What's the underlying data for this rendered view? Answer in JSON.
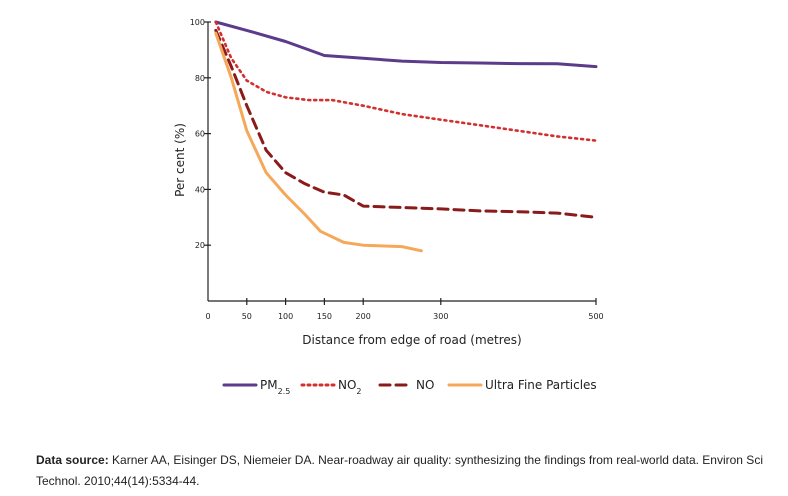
{
  "chart_data": {
    "type": "line",
    "xlabel": "Distance from edge of road (metres)",
    "ylabel": "Per cent (%)",
    "xlim": [
      0,
      500
    ],
    "ylim": [
      0,
      100
    ],
    "x_ticks": [
      0,
      50,
      100,
      150,
      200,
      300,
      500
    ],
    "y_ticks": [
      20,
      40,
      60,
      80,
      100
    ],
    "grid": false,
    "legend_position": "bottom",
    "series": [
      {
        "name": "PM",
        "name_sub": "2.5",
        "color": "#5b3b8a",
        "style": "solid",
        "x": [
          10,
          50,
          100,
          130,
          150,
          200,
          250,
          300,
          350,
          400,
          450,
          500
        ],
        "y": [
          100,
          97,
          93,
          90,
          88,
          87,
          86,
          85.5,
          85.3,
          85.1,
          85,
          84
        ]
      },
      {
        "name": "NO",
        "name_sub": "2",
        "color": "#d32f2f",
        "style": "dotted",
        "x": [
          10,
          30,
          50,
          75,
          100,
          130,
          160,
          200,
          250,
          300,
          350,
          400,
          450,
          500
        ],
        "y": [
          100,
          87,
          79,
          75,
          73,
          72,
          72,
          70,
          67,
          65,
          63,
          61,
          59,
          57.5
        ]
      },
      {
        "name": "NO",
        "name_sub": "",
        "color": "#8b1a1a",
        "style": "dashed",
        "x": [
          10,
          30,
          50,
          75,
          100,
          125,
          150,
          175,
          200,
          250,
          300,
          350,
          400,
          450,
          500
        ],
        "y": [
          97,
          84,
          70,
          54,
          46,
          42,
          39,
          38,
          34,
          33.5,
          33,
          32.3,
          32,
          31.5,
          30
        ]
      },
      {
        "name": "Ultra Fine Particles",
        "name_sub": "",
        "color": "#f5a85a",
        "style": "solid",
        "x": [
          10,
          30,
          50,
          75,
          100,
          125,
          145,
          175,
          200,
          250,
          275
        ],
        "y": [
          96,
          80,
          61,
          46,
          38,
          31,
          25,
          21,
          20,
          19.5,
          18
        ]
      }
    ]
  },
  "source": {
    "label": "Data source:",
    "text": " Karner AA, Eisinger DS, Niemeier DA. Near-roadway air quality: synthesizing the findings from real-world data. Environ Sci Technol. 2010;44(14):5334-44."
  }
}
